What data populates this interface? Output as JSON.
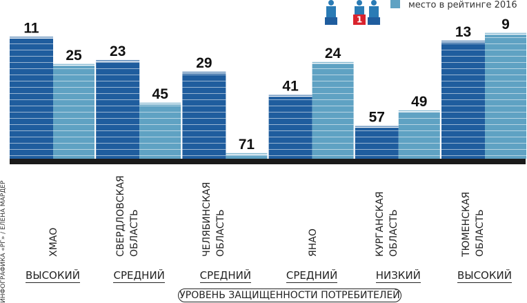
{
  "chart_data": {
    "type": "bar",
    "categories": [
      "ХМАО",
      "СВЕРДЛОВСКАЯ ОБЛАСТЬ",
      "ЧЕЛЯБИНСКАЯ ОБЛАСТЬ",
      "ЯНАО",
      "КУРГАНСКАЯ ОБЛАСТЬ",
      "ТЮМЕНСКАЯ ОБЛАСТЬ"
    ],
    "levels": [
      "ВЫСОКИЙ",
      "СРЕДНИЙ",
      "СРЕДНИЙ",
      "СРЕДНИЙ",
      "НИЗКИЙ",
      "ВЫСОКИЙ"
    ],
    "series": [
      {
        "color": "#1f5d9e",
        "values": [
          11,
          23,
          29,
          41,
          57,
          13
        ]
      },
      {
        "name": "место в рейтинге 2016",
        "color": "#5fa2c3",
        "values": [
          25,
          45,
          71,
          24,
          49,
          9
        ]
      }
    ],
    "ylim": [
      73,
      0
    ],
    "xlabel": "УРОВЕНЬ ЗАЩИЩЕННОСТИ ПОТРЕБИТЕЛЕЙ",
    "credit": "ИНФОГРАФИКА «РГ» / ЕЛЕНА МАРДЕР"
  }
}
